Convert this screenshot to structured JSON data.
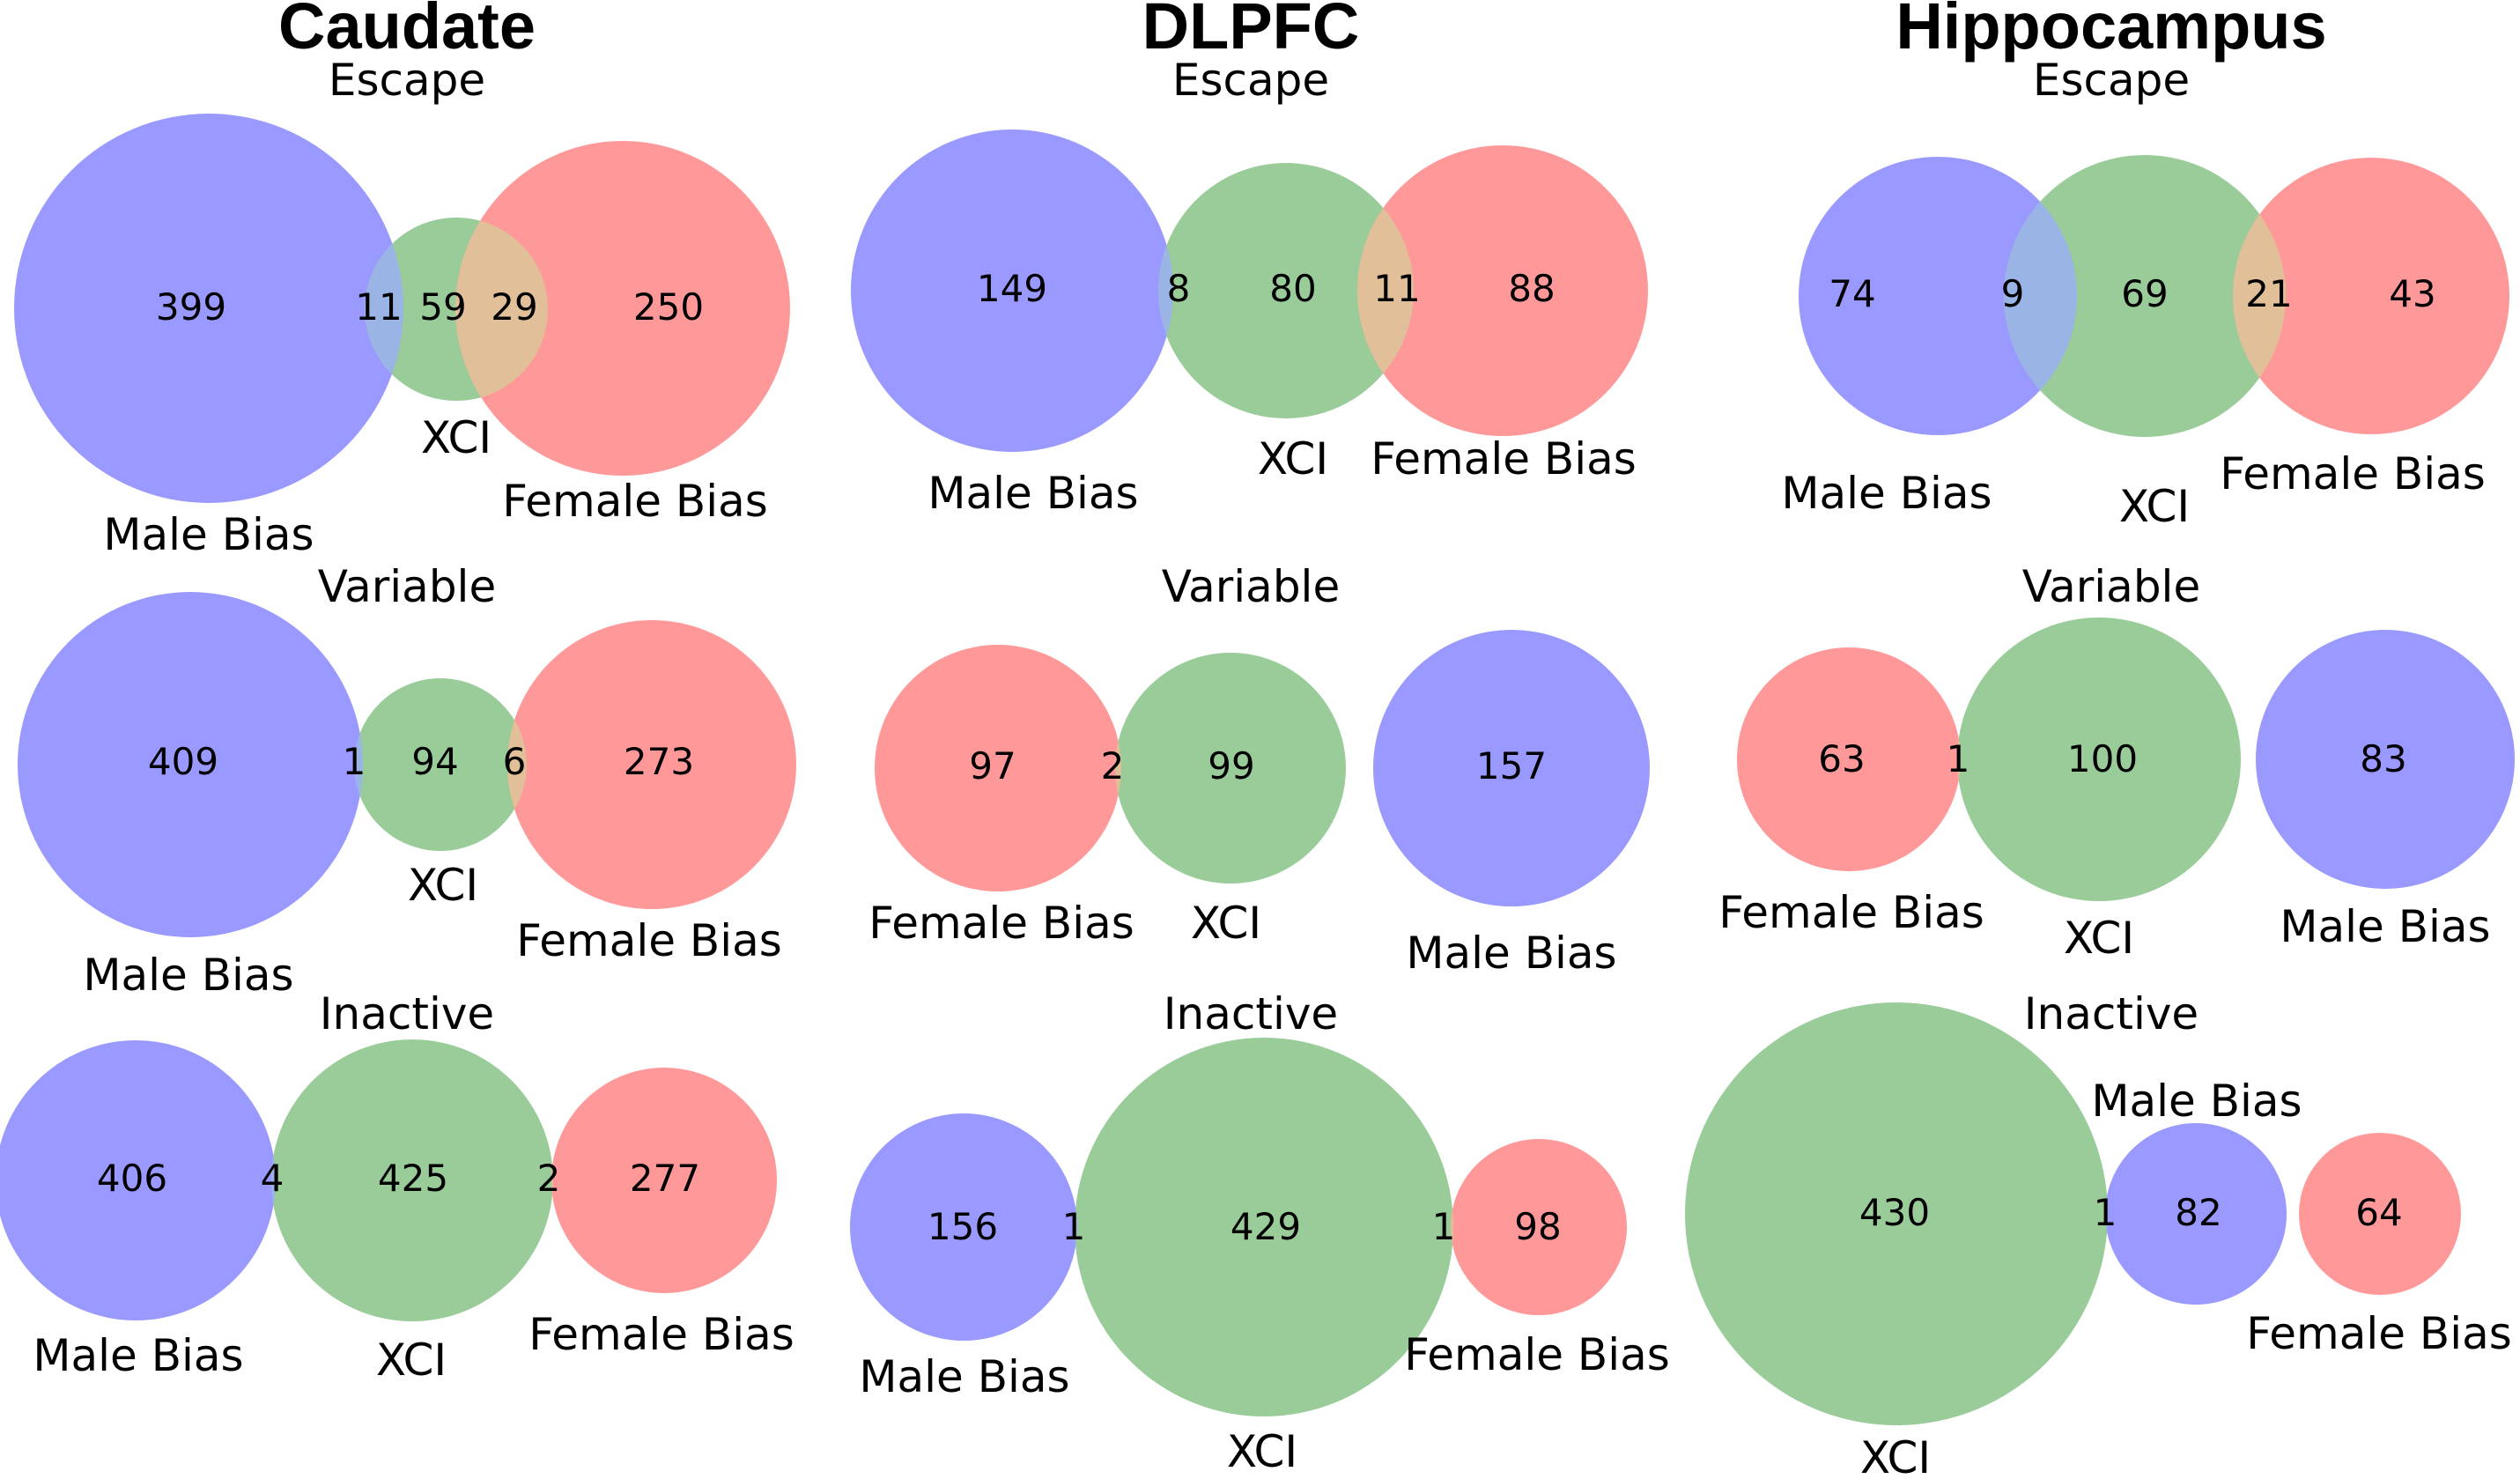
{
  "colors": {
    "male": "#9999ff",
    "xci": "#99cc99",
    "female": "#ff9999",
    "male_xci_overlap": "#99b4e5",
    "xci_female_overlap": "#e0bf99"
  },
  "chart_data": [
    {
      "type": "venn",
      "region": "Caudate",
      "category": "Escape",
      "sets": [
        {
          "name": "Male Bias",
          "only": 399
        },
        {
          "name": "XCI",
          "only": 59
        },
        {
          "name": "Female Bias",
          "only": 250
        }
      ],
      "overlaps": [
        {
          "sets": [
            "Male Bias",
            "XCI"
          ],
          "value": 11
        },
        {
          "sets": [
            "XCI",
            "Female Bias"
          ],
          "value": 29
        }
      ]
    },
    {
      "type": "venn",
      "region": "DLPFC",
      "category": "Escape",
      "sets": [
        {
          "name": "Male Bias",
          "only": 149
        },
        {
          "name": "XCI",
          "only": 80
        },
        {
          "name": "Female Bias",
          "only": 88
        }
      ],
      "overlaps": [
        {
          "sets": [
            "Male Bias",
            "XCI"
          ],
          "value": 8
        },
        {
          "sets": [
            "XCI",
            "Female Bias"
          ],
          "value": 11
        }
      ]
    },
    {
      "type": "venn",
      "region": "Hippocampus",
      "category": "Escape",
      "sets": [
        {
          "name": "Male Bias",
          "only": 74
        },
        {
          "name": "XCI",
          "only": 69
        },
        {
          "name": "Female Bias",
          "only": 43
        }
      ],
      "overlaps": [
        {
          "sets": [
            "Male Bias",
            "XCI"
          ],
          "value": 9
        },
        {
          "sets": [
            "XCI",
            "Female Bias"
          ],
          "value": 21
        }
      ]
    },
    {
      "type": "venn",
      "region": "Caudate",
      "category": "Variable",
      "sets": [
        {
          "name": "Male Bias",
          "only": 409
        },
        {
          "name": "XCI",
          "only": 94
        },
        {
          "name": "Female Bias",
          "only": 273
        }
      ],
      "overlaps": [
        {
          "sets": [
            "Male Bias",
            "XCI"
          ],
          "value": 1
        },
        {
          "sets": [
            "XCI",
            "Female Bias"
          ],
          "value": 6
        }
      ]
    },
    {
      "type": "venn",
      "region": "DLPFC",
      "category": "Variable",
      "sets": [
        {
          "name": "Female Bias",
          "only": 97
        },
        {
          "name": "XCI",
          "only": 99
        },
        {
          "name": "Male Bias",
          "only": 157
        }
      ],
      "overlaps": [
        {
          "sets": [
            "Female Bias",
            "XCI"
          ],
          "value": 2
        }
      ]
    },
    {
      "type": "venn",
      "region": "Hippocampus",
      "category": "Variable",
      "sets": [
        {
          "name": "Female Bias",
          "only": 63
        },
        {
          "name": "XCI",
          "only": 100
        },
        {
          "name": "Male Bias",
          "only": 83
        }
      ],
      "overlaps": [
        {
          "sets": [
            "Female Bias",
            "XCI"
          ],
          "value": 1
        }
      ]
    },
    {
      "type": "venn",
      "region": "Caudate",
      "category": "Inactive",
      "sets": [
        {
          "name": "Male Bias",
          "only": 406
        },
        {
          "name": "XCI",
          "only": 425
        },
        {
          "name": "Female Bias",
          "only": 277
        }
      ],
      "overlaps": [
        {
          "sets": [
            "Male Bias",
            "XCI"
          ],
          "value": 4
        },
        {
          "sets": [
            "XCI",
            "Female Bias"
          ],
          "value": 2
        }
      ]
    },
    {
      "type": "venn",
      "region": "DLPFC",
      "category": "Inactive",
      "sets": [
        {
          "name": "Male Bias",
          "only": 156
        },
        {
          "name": "XCI",
          "only": 429
        },
        {
          "name": "Female Bias",
          "only": 98
        }
      ],
      "overlaps": [
        {
          "sets": [
            "Male Bias",
            "XCI"
          ],
          "value": 1
        },
        {
          "sets": [
            "XCI",
            "Female Bias"
          ],
          "value": 1
        }
      ]
    },
    {
      "type": "venn",
      "region": "Hippocampus",
      "category": "Inactive",
      "sets": [
        {
          "name": "XCI",
          "only": 430
        },
        {
          "name": "Male Bias",
          "only": 82
        },
        {
          "name": "Female Bias",
          "only": 64
        }
      ],
      "overlaps": [
        {
          "sets": [
            "XCI",
            "Male Bias"
          ],
          "value": 1
        }
      ]
    }
  ]
}
